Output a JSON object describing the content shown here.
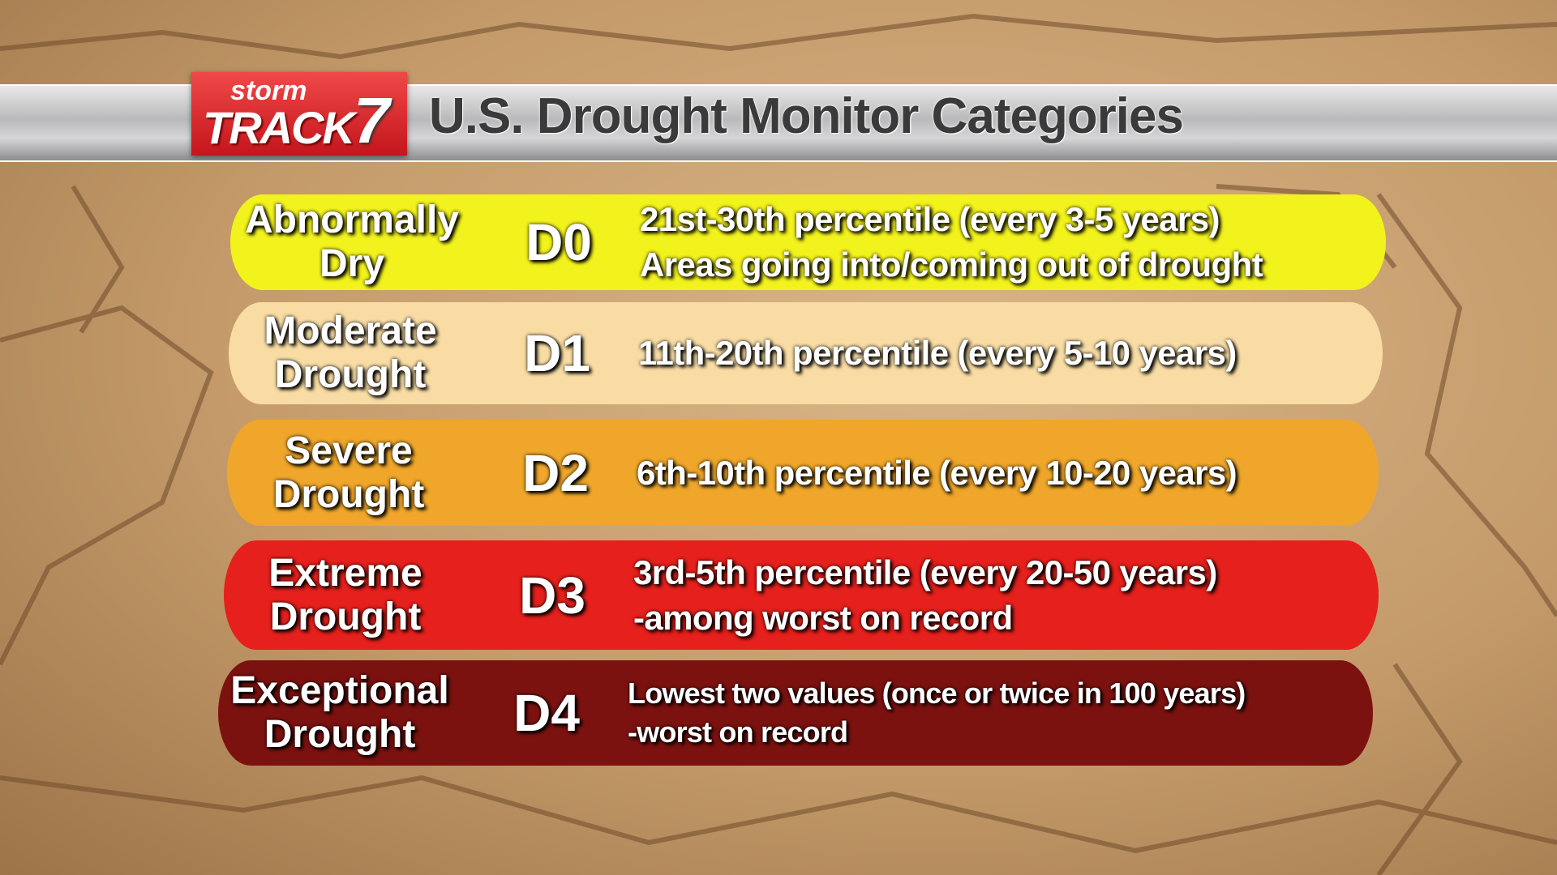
{
  "header": {
    "logo": {
      "top": "storm",
      "bottom": "TRACK",
      "badge": "7"
    },
    "title": "U.S. Drought Monitor Categories"
  },
  "rows": [
    {
      "name": [
        "Abnormally",
        "Dry"
      ],
      "code": "D0",
      "description": [
        "21st-30th percentile (every 3-5 years)",
        "Areas going into/coming out of drought"
      ]
    },
    {
      "name": [
        "Moderate",
        "Drought"
      ],
      "code": "D1",
      "description": [
        "11th-20th percentile (every 5-10 years)"
      ]
    },
    {
      "name": [
        "Severe",
        "Drought"
      ],
      "code": "D2",
      "description": [
        "6th-10th percentile (every 10-20 years)"
      ]
    },
    {
      "name": [
        "Extreme",
        "Drought"
      ],
      "code": "D3",
      "description": [
        "3rd-5th percentile (every 20-50 years)",
        "-among worst on record"
      ]
    },
    {
      "name": [
        "Exceptional",
        "Drought"
      ],
      "code": "D4",
      "description": [
        "Lowest two values (once or twice in 100 years)",
        "-worst on record"
      ]
    }
  ]
}
